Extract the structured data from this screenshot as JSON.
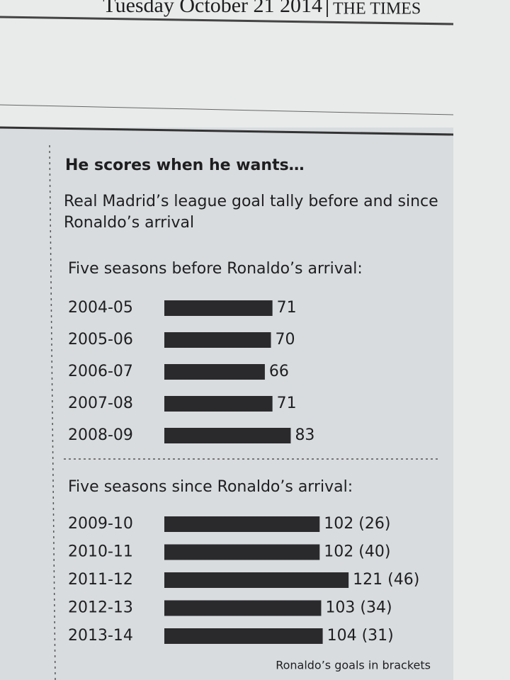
{
  "header": {
    "date": "Tuesday October 21 2014",
    "paper": "THE TIMES"
  },
  "graphic": {
    "title": "He scores when he wants…",
    "subtitle": "Real Madrid’s league goal tally before and since Ronaldo’s arrival"
  },
  "chart_data": [
    {
      "type": "bar",
      "orientation": "horizontal",
      "title": "Five seasons before Ronaldo’s arrival:",
      "categories": [
        "2004-05",
        "2005-06",
        "2006-07",
        "2007-08",
        "2008-09"
      ],
      "values": [
        71,
        70,
        66,
        71,
        83
      ],
      "color": "#2a2a2c"
    },
    {
      "type": "bar",
      "orientation": "horizontal",
      "title": "Five seasons since Ronaldo’s arrival:",
      "categories": [
        "2009-10",
        "2010-11",
        "2011-12",
        "2012-13",
        "2013-14"
      ],
      "values": [
        102,
        102,
        121,
        103,
        104
      ],
      "value_labels": [
        "102 (26)",
        "102 (40)",
        "121 (46)",
        "103 (34)",
        "104 (31)"
      ],
      "color": "#2a2a2c",
      "note": "Ronaldo’s goals in brackets"
    }
  ]
}
